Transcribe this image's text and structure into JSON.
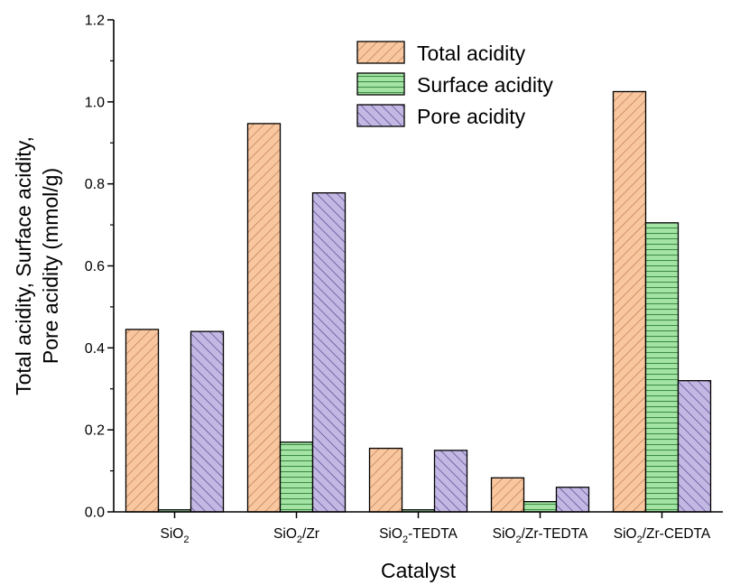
{
  "chart_data": {
    "type": "bar",
    "categories": [
      {
        "base": "SiO",
        "sub": "2",
        "suffix": ""
      },
      {
        "base": "SiO",
        "sub": "2",
        "suffix": "/Zr"
      },
      {
        "base": "SiO",
        "sub": "2",
        "suffix": "-TEDTA"
      },
      {
        "base": "SiO",
        "sub": "2",
        "suffix": "/Zr-TEDTA"
      },
      {
        "base": "SiO",
        "sub": "2",
        "suffix": "/Zr-CEDTA"
      }
    ],
    "series": [
      {
        "name": "Total acidity",
        "values": [
          0.445,
          0.947,
          0.155,
          0.083,
          1.025
        ],
        "color": "#F9C79F",
        "pattern": "diag-right"
      },
      {
        "name": "Surface acidity",
        "values": [
          0.005,
          0.17,
          0.005,
          0.025,
          0.705
        ],
        "color": "#A3E4A5",
        "pattern": "horizontal"
      },
      {
        "name": "Pore acidity",
        "values": [
          0.44,
          0.778,
          0.15,
          0.06,
          0.32
        ],
        "color": "#C3B8E4",
        "pattern": "diag-left"
      }
    ],
    "xlabel": "Catalyst",
    "ylabel_lines": [
      "Total acidity, Surface acidity,",
      "Pore acidity (mmol/g)"
    ],
    "ylim": [
      0,
      1.2
    ],
    "yticks": [
      "0.0",
      "0.2",
      "0.4",
      "0.6",
      "0.8",
      "1.0",
      "1.2"
    ],
    "legend_position": "top-center",
    "grid": false
  }
}
